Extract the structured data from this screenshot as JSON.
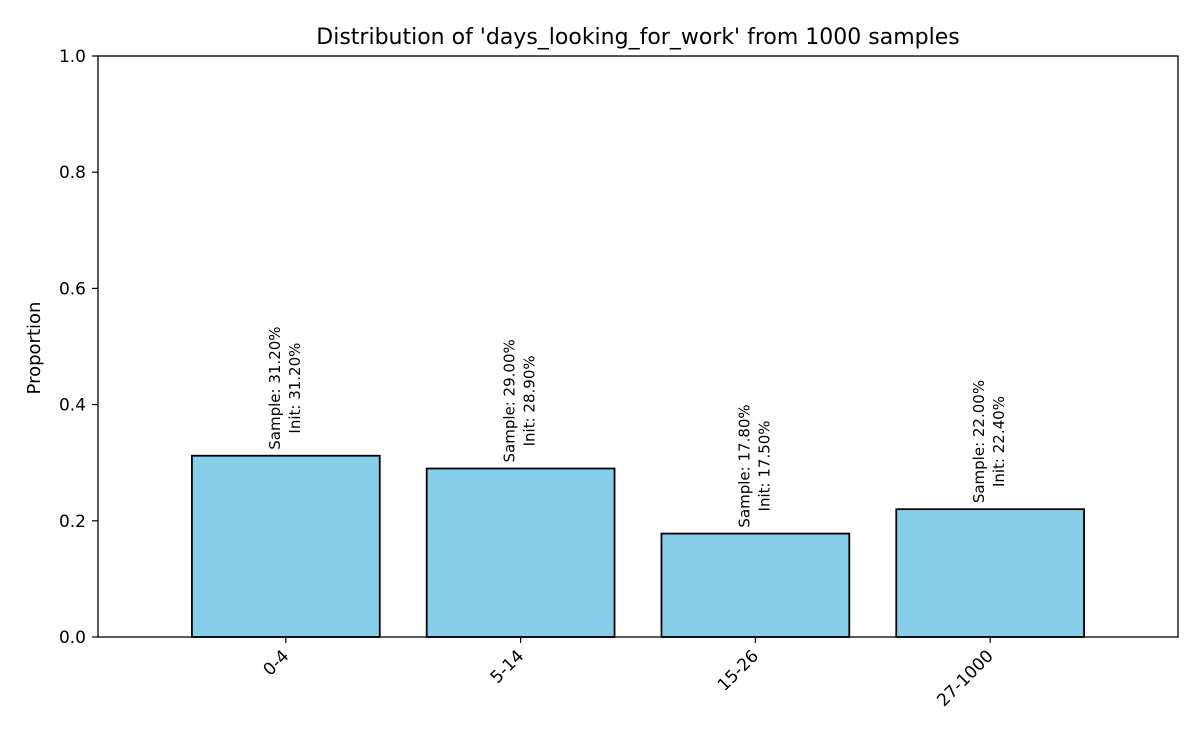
{
  "chart_data": {
    "type": "bar",
    "title": "Distribution of 'days_looking_for_work' from 1000 samples",
    "xlabel": "",
    "ylabel": "Proportion",
    "ylim": [
      0,
      1.0
    ],
    "yticks": [
      "0.0",
      "0.2",
      "0.4",
      "0.6",
      "0.8",
      "1.0"
    ],
    "categories": [
      "0-4",
      "5-14",
      "15-26",
      "27-1000"
    ],
    "values": [
      0.312,
      0.29,
      0.178,
      0.22
    ],
    "bar_labels": [
      {
        "sample": "Sample: 31.20%",
        "init": "Init: 31.20%"
      },
      {
        "sample": "Sample: 29.00%",
        "init": "Init: 28.90%"
      },
      {
        "sample": "Sample: 17.80%",
        "init": "Init: 17.50%"
      },
      {
        "sample": "Sample: 22.00%",
        "init": "Init: 22.40%"
      }
    ],
    "bar_color": "#87CEEB",
    "bar_edge_color": "#000000",
    "grid": false,
    "legend": "none"
  }
}
